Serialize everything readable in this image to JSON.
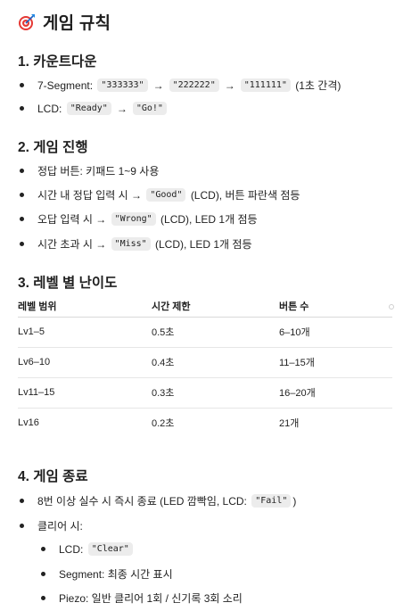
{
  "title": "게임 규칙",
  "sections": {
    "countdown": {
      "heading": "1. 카운트다운",
      "seg_label": "7-Segment:",
      "seg_values": [
        "\"333333\"",
        "\"222222\"",
        "\"111111\""
      ],
      "seg_note": "(1초 간격)",
      "lcd_label": "LCD:",
      "lcd_values": [
        "\"Ready\"",
        "\"Go!\""
      ]
    },
    "progress": {
      "heading": "2. 게임 진행",
      "item1": "정답 버튼: 키패드 1~9 사용",
      "item2_pre": "시간 내 정답 입력 시 →",
      "item2_code": "\"Good\"",
      "item2_post": "(LCD), 버튼 파란색 점등",
      "item3_pre": "오답 입력 시 →",
      "item3_code": "\"Wrong\"",
      "item3_post": "(LCD), LED 1개 점등",
      "item4_pre": "시간 초과 시 →",
      "item4_code": "\"Miss\"",
      "item4_post": "(LCD), LED 1개 점등"
    },
    "levels": {
      "heading": "3. 레벨 별 난이도",
      "columns": [
        "레벨 범위",
        "시간 제한",
        "버튼 수"
      ],
      "rows": [
        [
          "Lv1–5",
          "0.5초",
          "6–10개"
        ],
        [
          "Lv6–10",
          "0.4초",
          "11–15개"
        ],
        [
          "Lv11–15",
          "0.3초",
          "16–20개"
        ],
        [
          "Lv16",
          "0.2초",
          "21개"
        ]
      ]
    },
    "end": {
      "heading": "4. 게임 종료",
      "item1_pre": "8번 이상 실수 시 즉시 종료 (LED 깜빡임, LCD:",
      "item1_code": "\"Fail\"",
      "item1_post": ")",
      "item2": "클리어 시:",
      "sub1_pre": "LCD:",
      "sub1_code": "\"Clear\"",
      "sub2": "Segment: 최종 시간 표시",
      "sub3": "Piezo: 일반 클리어 1회 / 신기록 3회 소리"
    }
  },
  "icons": {
    "title_emoji": "direct-hit-target-icon",
    "arrow": "→"
  }
}
